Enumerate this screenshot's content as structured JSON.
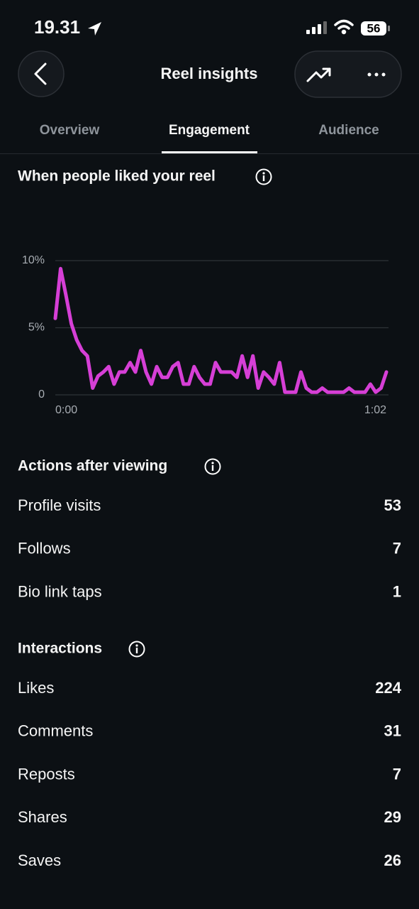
{
  "status_bar": {
    "time": "19.31",
    "battery": "56"
  },
  "header": {
    "title": "Reel insights"
  },
  "tabs": [
    "Overview",
    "Engagement",
    "Audience"
  ],
  "chart_data": {
    "type": "line",
    "title": "When people liked your reel",
    "x": [
      0,
      1,
      2,
      3,
      4,
      5,
      6,
      7,
      8,
      9,
      10,
      11,
      12,
      13,
      14,
      15,
      16,
      17,
      18,
      19,
      20,
      21,
      22,
      23,
      24,
      25,
      26,
      27,
      28,
      29,
      30,
      31,
      32,
      33,
      34,
      35,
      36,
      37,
      38,
      39,
      40,
      41,
      42,
      43,
      44,
      45,
      46,
      47,
      48,
      49,
      50,
      51,
      52,
      53,
      54,
      55,
      56,
      57,
      58,
      59,
      60,
      61,
      62
    ],
    "series": [
      {
        "color": "#d63fd6",
        "values": [
          5.7,
          9.4,
          7.4,
          5.3,
          4.1,
          3.3,
          2.9,
          0.5,
          1.4,
          1.7,
          2.1,
          0.8,
          1.7,
          1.7,
          2.4,
          1.7,
          3.3,
          1.7,
          0.8,
          2.1,
          1.3,
          1.3,
          2.1,
          2.4,
          0.8,
          0.8,
          2.1,
          1.3,
          0.8,
          0.8,
          2.4,
          1.7,
          1.7,
          1.7,
          1.3,
          2.9,
          1.3,
          2.9,
          0.5,
          1.7,
          1.3,
          0.8,
          2.4,
          0.2,
          0.2,
          0.2,
          1.7,
          0.5,
          0.2,
          0.2,
          0.5,
          0.2,
          0.2,
          0.2,
          0.2,
          0.5,
          0.2,
          0.2,
          0.2,
          0.8,
          0.2,
          0.5,
          1.7
        ]
      }
    ],
    "xlim": [
      0,
      62
    ],
    "xticks": [
      {
        "value": 0,
        "label": "0:00"
      },
      {
        "value": 62,
        "label": "1:02"
      }
    ],
    "ylim": [
      0,
      10
    ],
    "yticks": [
      0,
      {
        "value": 5,
        "label": "5%"
      },
      {
        "value": 10,
        "label": "10%"
      }
    ],
    "grid": true
  },
  "actions": {
    "title": "Actions after viewing",
    "rows": [
      [
        "Profile visits",
        53
      ],
      [
        "Follows",
        7
      ],
      [
        "Bio link taps",
        1
      ]
    ]
  },
  "interactions": {
    "title": "Interactions",
    "rows": [
      [
        "Likes",
        224
      ],
      [
        "Comments",
        31
      ],
      [
        "Reposts",
        7
      ],
      [
        "Shares",
        29
      ],
      [
        "Saves",
        26
      ]
    ]
  }
}
